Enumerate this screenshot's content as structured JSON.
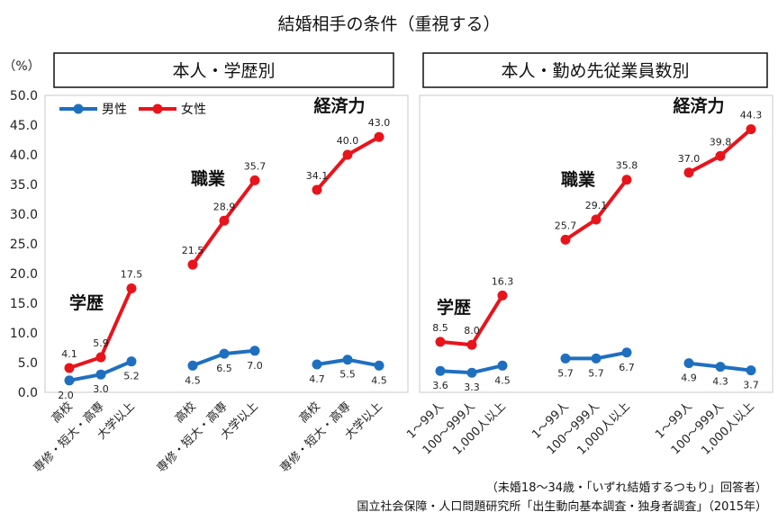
{
  "chart_data": {
    "type": "line",
    "title": "結婚相手の条件（重視する）",
    "ylabel": "（%）",
    "ylim": [
      0,
      50
    ],
    "yticks": [
      "0.0",
      "5.0",
      "10.0",
      "15.0",
      "20.0",
      "25.0",
      "30.0",
      "35.0",
      "40.0",
      "45.0",
      "50.0"
    ],
    "legend": {
      "placement": "top-left",
      "entries": [
        {
          "name": "男性",
          "color": "#1f6fbf"
        },
        {
          "name": "女性",
          "color": "#e8141c"
        }
      ]
    },
    "panels": [
      {
        "title": "本人・学歴別",
        "categories": [
          "高校",
          "専修・短大・高専",
          "大学以上"
        ],
        "groups": [
          {
            "label": "学歴",
            "male": [
              2.0,
              3.0,
              5.2
            ],
            "female": [
              4.1,
              5.9,
              17.5
            ],
            "male_labels": [
              "2.0",
              "3.0",
              "5.2"
            ],
            "female_labels": [
              "4.1",
              "5.9",
              "17.5"
            ]
          },
          {
            "label": "職業",
            "male": [
              4.5,
              6.5,
              7.0
            ],
            "female": [
              21.5,
              28.9,
              35.7
            ],
            "male_labels": [
              "4.5",
              "6.5",
              "7.0"
            ],
            "female_labels": [
              "21.5",
              "28.9",
              "35.7"
            ]
          },
          {
            "label": "経済力",
            "male": [
              4.7,
              5.5,
              4.5
            ],
            "female": [
              34.1,
              40.0,
              43.0
            ],
            "male_labels": [
              "4.7",
              "5.5",
              "4.5"
            ],
            "female_labels": [
              "34.1",
              "40.0",
              "43.0"
            ]
          }
        ]
      },
      {
        "title": "本人・勤め先従業員数別",
        "categories": [
          "1～99人",
          "100～999人",
          "1,000人以上"
        ],
        "groups": [
          {
            "label": "学歴",
            "male": [
              3.6,
              3.3,
              4.5
            ],
            "female": [
              8.5,
              8.0,
              16.3
            ],
            "male_labels": [
              "3.6",
              "3.3",
              "4.5"
            ],
            "female_labels": [
              "8.5",
              "8.0",
              "16.3"
            ]
          },
          {
            "label": "職業",
            "male": [
              5.7,
              5.7,
              6.7
            ],
            "female": [
              25.7,
              29.1,
              35.8
            ],
            "male_labels": [
              "5.7",
              "5.7",
              "6.7"
            ],
            "female_labels": [
              "25.7",
              "29.1",
              "35.8"
            ]
          },
          {
            "label": "経済力",
            "male": [
              4.9,
              4.3,
              3.7
            ],
            "female": [
              37.0,
              39.8,
              44.3
            ],
            "male_labels": [
              "4.9",
              "4.3",
              "3.7"
            ],
            "female_labels": [
              "37.0",
              "39.8",
              "44.3"
            ]
          }
        ]
      }
    ],
    "notes": [
      "（未婚18～34歳・「いずれ結婚するつもり」回答者）",
      "国立社会保障・人口問題研究所「出生動向基本調査・独身者調査」（2015年）"
    ]
  }
}
